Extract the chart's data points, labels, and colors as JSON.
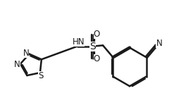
{
  "background": "#ffffff",
  "line_color": "#1a1a1a",
  "lw": 1.8,
  "lw_inner": 1.6,
  "fontsize": 8.5,
  "figsize": [
    2.64,
    1.56
  ],
  "dpi": 100,
  "xlim": [
    0,
    10
  ],
  "ylim": [
    0,
    6
  ]
}
